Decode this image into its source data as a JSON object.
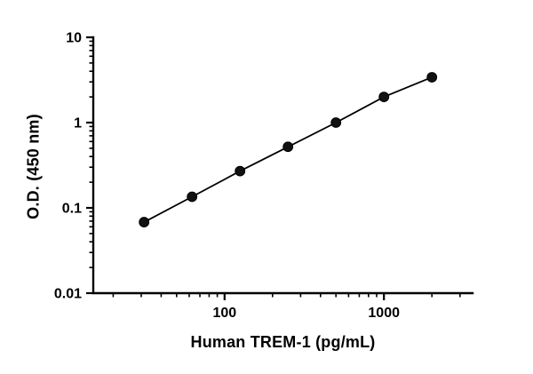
{
  "figure": {
    "background": "#ffffff",
    "axis_color": "#000000",
    "marker_color": "#111111",
    "line_color": "#000000"
  },
  "chart_data": {
    "type": "scatter",
    "title": "",
    "xlabel": "Human TREM-1 (pg/mL)",
    "ylabel": "O.D. (450 nm)",
    "x_scale": "log",
    "y_scale": "log",
    "xlim": [
      15,
      3600
    ],
    "ylim": [
      0.01,
      10
    ],
    "x": [
      31.25,
      62.5,
      125,
      250,
      500,
      1000,
      2000
    ],
    "y": [
      0.068,
      0.135,
      0.27,
      0.52,
      1.0,
      2.0,
      3.4
    ],
    "line": true,
    "marker": "circle",
    "grid": false,
    "legend": "none",
    "x_major_ticks": [
      100,
      1000
    ],
    "x_major_tick_labels": [
      "100",
      "1000"
    ],
    "x_minor_ticks": [
      20,
      30,
      40,
      50,
      60,
      70,
      80,
      90,
      200,
      300,
      400,
      500,
      600,
      700,
      800,
      900,
      2000,
      3000
    ],
    "y_major_ticks": [
      0.01,
      0.1,
      1,
      10
    ],
    "y_major_tick_labels": [
      "0.01",
      "0.1",
      "1",
      "10"
    ],
    "y_minor_ticks": [
      0.02,
      0.03,
      0.04,
      0.05,
      0.06,
      0.07,
      0.08,
      0.09,
      0.2,
      0.3,
      0.4,
      0.5,
      0.6,
      0.7,
      0.8,
      0.9,
      2,
      3,
      4,
      5,
      6,
      7,
      8,
      9
    ]
  }
}
